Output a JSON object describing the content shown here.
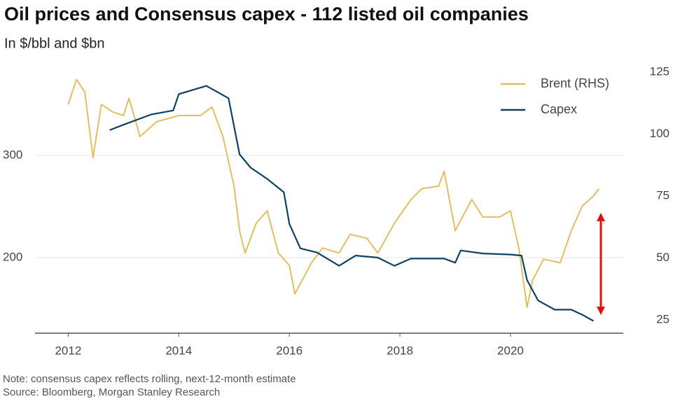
{
  "chart_data": {
    "type": "line",
    "title": "Oil prices and Consensus capex - 112 listed oil companies",
    "subtitle": "In $/bbl and $bn",
    "notes": [
      "Note: consensus capex reflects rolling, next-12-month estimate",
      "Source: Bloomberg, Morgan Stanley Research"
    ],
    "xlim": [
      2011.4,
      2022.04
    ],
    "xticks": [
      2012,
      2014,
      2016,
      2018,
      2020
    ],
    "ylim": [
      126,
      387
    ],
    "yticks": [
      200,
      300
    ],
    "y2lim": [
      19.6,
      127.3
    ],
    "y2ticks": [
      25,
      50,
      75,
      100,
      125
    ],
    "grid": true,
    "legend": "upper right",
    "series": [
      {
        "name": "Brent (RHS)",
        "color": "#e0bf63",
        "axis": "y2",
        "x": [
          2012.0,
          2012.15,
          2012.3,
          2012.45,
          2012.6,
          2012.8,
          2013.0,
          2013.1,
          2013.3,
          2013.6,
          2014.0,
          2014.4,
          2014.6,
          2014.8,
          2015.0,
          2015.1,
          2015.2,
          2015.4,
          2015.6,
          2015.8,
          2016.0,
          2016.1,
          2016.4,
          2016.6,
          2016.9,
          2017.1,
          2017.4,
          2017.6,
          2017.9,
          2018.2,
          2018.4,
          2018.7,
          2018.8,
          2019.0,
          2019.3,
          2019.5,
          2019.8,
          2020.0,
          2020.15,
          2020.3,
          2020.4,
          2020.6,
          2020.9,
          2021.1,
          2021.3,
          2021.5,
          2021.6
        ],
        "values": [
          112,
          122,
          117,
          90.5,
          112,
          109,
          107.5,
          114.5,
          99,
          105,
          107.5,
          107.5,
          111,
          99,
          79,
          61,
          52,
          64,
          69,
          52,
          47,
          35.5,
          48,
          54,
          52,
          59.5,
          58,
          52,
          64,
          73.6,
          78,
          79,
          85,
          61,
          73.6,
          66.5,
          66.5,
          69,
          54,
          30,
          41,
          49.5,
          48,
          61,
          71,
          75,
          78
        ]
      },
      {
        "name": "Capex",
        "color": "#0f4160",
        "axis": "y",
        "x": [
          2012.75,
          2013.0,
          2013.5,
          2013.9,
          2014.0,
          2014.5,
          2014.9,
          2015.1,
          2015.3,
          2015.6,
          2015.9,
          2016.0,
          2016.2,
          2016.5,
          2016.9,
          2017.2,
          2017.6,
          2017.9,
          2018.2,
          2018.8,
          2019.0,
          2019.1,
          2019.5,
          2020.0,
          2020.2,
          2020.3,
          2020.5,
          2020.8,
          2021.1,
          2021.3,
          2021.5
        ],
        "values": [
          324.7,
          330,
          340,
          344,
          360,
          368,
          356,
          301,
          288,
          277,
          264,
          233,
          209,
          205,
          192,
          202,
          200,
          192,
          199,
          199,
          195,
          207,
          204,
          203,
          202,
          178,
          158,
          149,
          149,
          144,
          138
        ]
      }
    ]
  }
}
